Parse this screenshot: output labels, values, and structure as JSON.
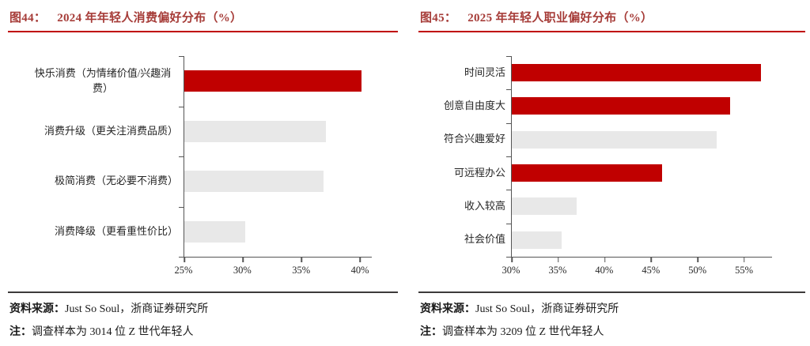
{
  "figures": [
    {
      "title_label": "图44：",
      "title": "2024 年年轻人消费偏好分布（%）",
      "source_prefix": "资料来源：",
      "source": "Just So Soul，浙商证券研究所",
      "note_prefix": "注：",
      "note": "调查样本为 3014 位 Z 世代年轻人"
    },
    {
      "title_label": "图45：",
      "title": "2025 年年轻人职业偏好分布（%）",
      "source_prefix": "资料来源：",
      "source": "Just So Soul，浙商证券研究所",
      "note_prefix": "注：",
      "note": "调查样本为 3209 位 Z 世代年轻人"
    }
  ],
  "colors": {
    "accent_red": "#c00000",
    "bar_gray": "#e8e8e8",
    "title_red": "#a63c38",
    "axis_gray": "#555555"
  },
  "chart_data": [
    {
      "type": "bar",
      "orientation": "horizontal",
      "title": "图44：2024 年年轻人消费偏好分布（%）",
      "categories": [
        "快乐消费（为情绪价值/兴趣消费）",
        "消费升级（更关注消费品质）",
        "极简消费（无必要不消费）",
        "消费降级（更看重性价比）"
      ],
      "values": [
        40.1,
        37.1,
        36.9,
        30.2
      ],
      "bar_colors": [
        "#c00000",
        "#e8e8e8",
        "#e8e8e8",
        "#e8e8e8"
      ],
      "xlim": [
        25,
        41
      ],
      "ticks": [
        25,
        30,
        35,
        40
      ],
      "tick_labels": [
        "25%",
        "30%",
        "35%",
        "40%"
      ],
      "unit": "%",
      "grid": false,
      "legend": false
    },
    {
      "type": "bar",
      "orientation": "horizontal",
      "title": "图45：2025 年年轻人职业偏好分布（%）",
      "categories": [
        "时间灵活",
        "创意自由度大",
        "符合兴趣爱好",
        "可远程办公",
        "收入较高",
        "社会价值"
      ],
      "values": [
        56.8,
        53.5,
        52.0,
        46.2,
        37.0,
        35.4
      ],
      "bar_colors": [
        "#c00000",
        "#c00000",
        "#e8e8e8",
        "#c00000",
        "#e8e8e8",
        "#e8e8e8"
      ],
      "xlim": [
        30,
        58
      ],
      "ticks": [
        30,
        35,
        40,
        45,
        50,
        55
      ],
      "tick_labels": [
        "30%",
        "35%",
        "40%",
        "45%",
        "50%",
        "55%"
      ],
      "unit": "%",
      "grid": false,
      "legend": false
    }
  ]
}
